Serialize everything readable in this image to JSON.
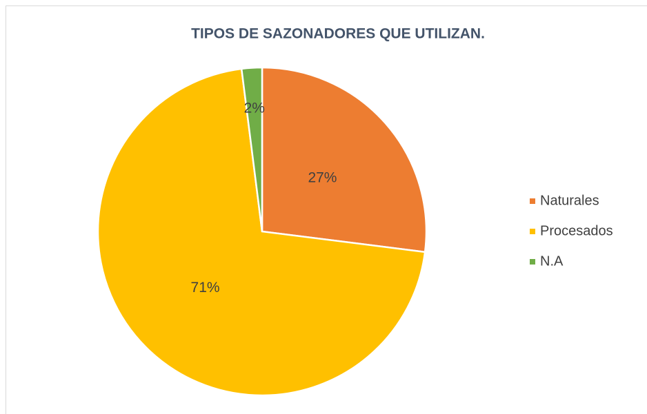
{
  "chart_data": {
    "type": "pie",
    "title": "TIPOS DE SAZONADORES QUE UTILIZAN.",
    "categories": [
      "Naturales",
      "Procesados",
      "N.A"
    ],
    "values": [
      27,
      71,
      2
    ],
    "value_labels": [
      "27%",
      "71%",
      "2%"
    ],
    "colors": [
      "#ed7d31",
      "#ffc000",
      "#70ad47"
    ],
    "legend": "right"
  }
}
